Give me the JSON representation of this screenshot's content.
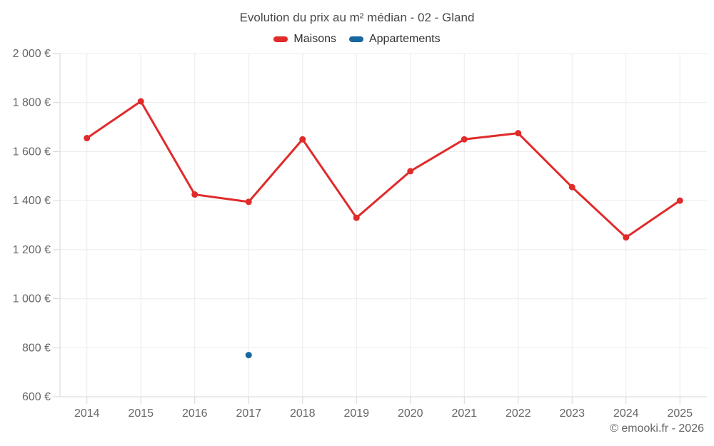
{
  "chart_data": {
    "type": "line",
    "title": "Evolution du prix au m² médian - 02 - Gland",
    "categories": [
      "2014",
      "2015",
      "2016",
      "2017",
      "2018",
      "2019",
      "2020",
      "2021",
      "2022",
      "2023",
      "2024",
      "2025"
    ],
    "series": [
      {
        "name": "Maisons",
        "color": "#e02b2b",
        "values": [
          1655,
          1805,
          1425,
          1395,
          1650,
          1330,
          1520,
          1650,
          1675,
          1455,
          1250,
          1400
        ]
      },
      {
        "name": "Appartements",
        "color": "#17689f",
        "values": [
          null,
          null,
          null,
          770,
          null,
          null,
          null,
          null,
          null,
          null,
          null,
          null
        ]
      }
    ],
    "ylim": [
      600,
      2000
    ],
    "ytick_step": 200,
    "ytick_labels": [
      "600 €",
      "800 €",
      "1 000 €",
      "1 200 €",
      "1 400 €",
      "1 600 €",
      "1 800 €",
      "2 000 €"
    ],
    "xlabel": "",
    "ylabel": "",
    "grid": true,
    "legend_position": "top"
  },
  "footer": {
    "credit": "© emooki.fr - 2026"
  },
  "colors": {
    "grid": "#ebebeb",
    "axis": "#d6d6d6",
    "tick_label": "#666666",
    "title": "#4a4a4a"
  }
}
